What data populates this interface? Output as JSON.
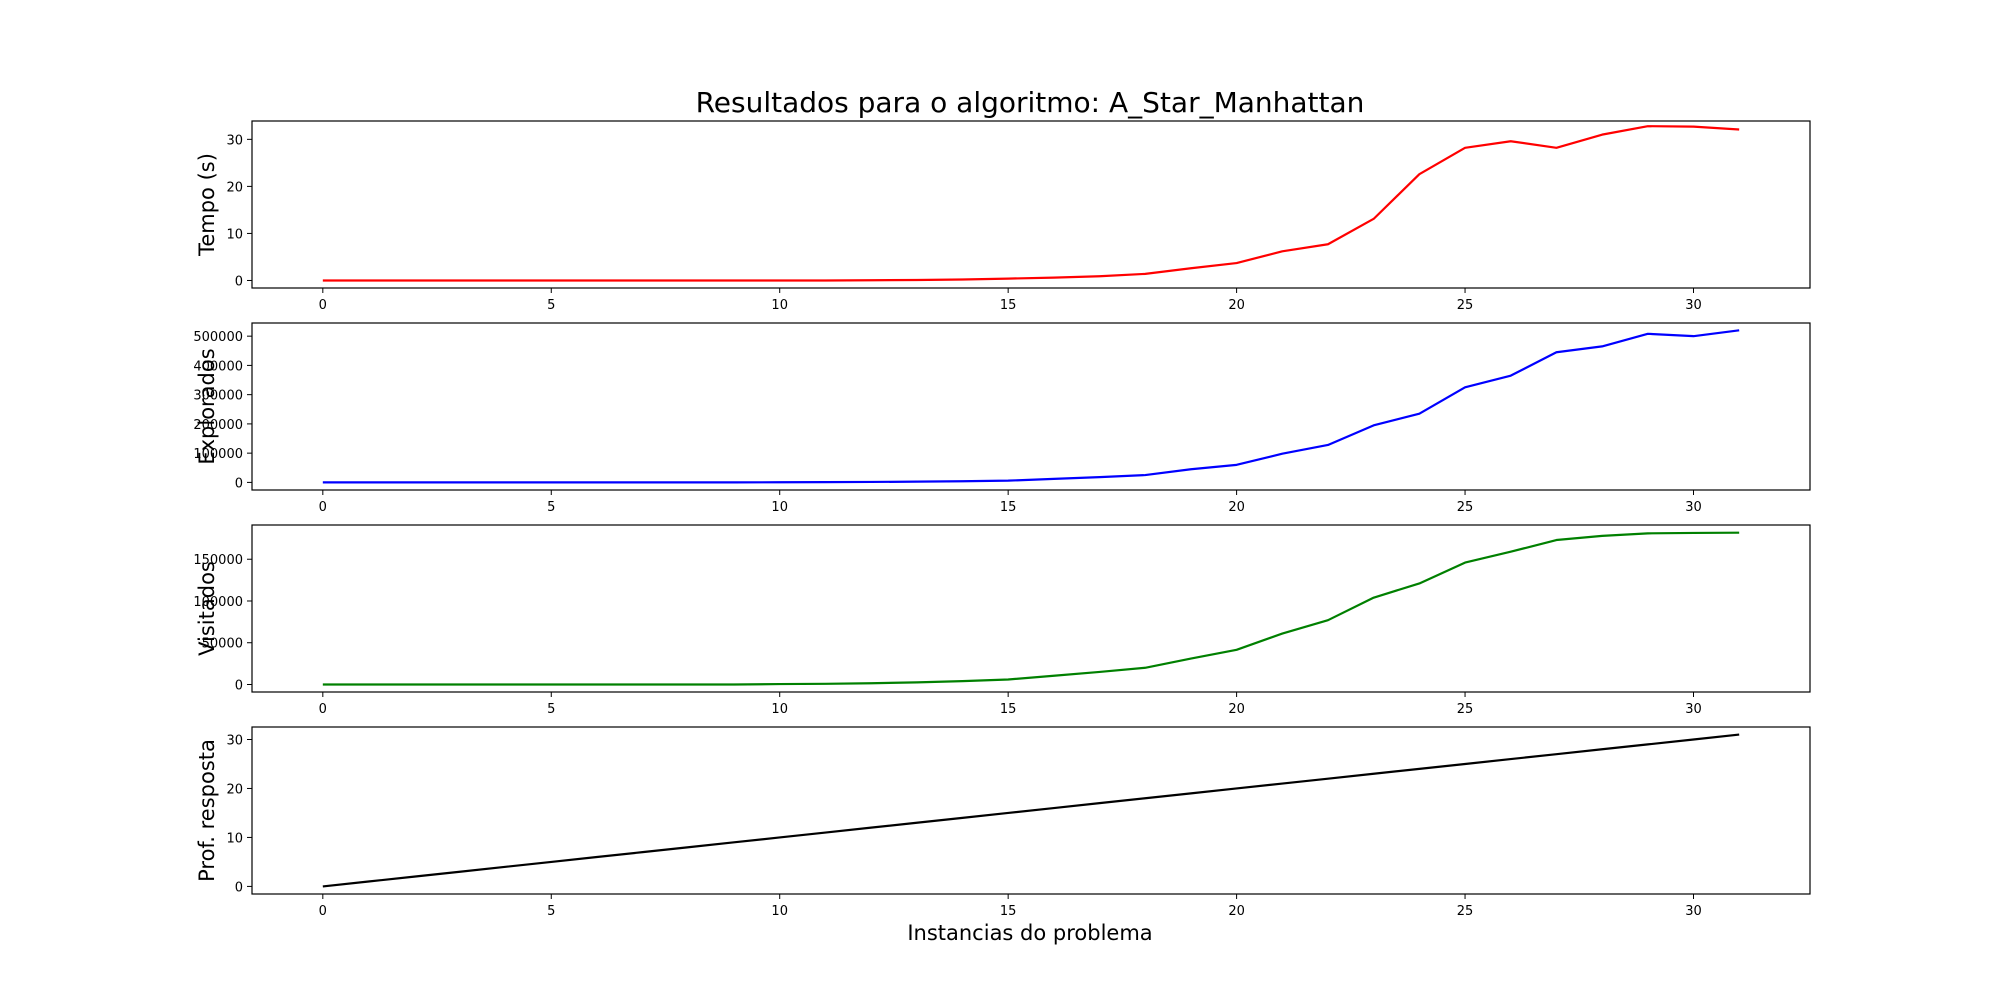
{
  "figure": {
    "title": "Resultados para o algoritmo: A_Star_Manhattan",
    "xlabel": "Instancias do problema"
  },
  "chart_data": [
    {
      "type": "line",
      "ylabel": "Tempo (s)",
      "color": "#ff0000",
      "xlim": [
        -1.55,
        32.55
      ],
      "ylim": [
        -1.6,
        33.9
      ],
      "xticks": [
        0,
        5,
        10,
        15,
        20,
        25,
        30
      ],
      "yticks": [
        0,
        10,
        20,
        30
      ],
      "ytick_labels": [
        "0",
        "10",
        "20",
        "30"
      ],
      "x": [
        0,
        1,
        2,
        3,
        4,
        5,
        6,
        7,
        8,
        9,
        10,
        11,
        12,
        13,
        14,
        15,
        16,
        17,
        18,
        19,
        20,
        21,
        22,
        23,
        24,
        25,
        26,
        27,
        28,
        29,
        30,
        31
      ],
      "values": [
        0,
        0,
        0,
        0,
        0,
        0,
        0,
        0,
        0,
        0,
        0,
        0,
        0.05,
        0.1,
        0.2,
        0.4,
        0.6,
        0.9,
        1.4,
        2.6,
        3.7,
        6.2,
        7.7,
        13.1,
        22.6,
        28.2,
        29.6,
        28.2,
        31.0,
        32.8,
        32.7,
        32.1
      ]
    },
    {
      "type": "line",
      "ylabel": "Explorados",
      "color": "#0000ff",
      "xlim": [
        -1.55,
        32.55
      ],
      "ylim": [
        -26000,
        545000
      ],
      "xticks": [
        0,
        5,
        10,
        15,
        20,
        25,
        30
      ],
      "yticks": [
        0,
        100000,
        200000,
        300000,
        400000,
        500000
      ],
      "ytick_labels": [
        "0",
        "100000",
        "200000",
        "300000",
        "400000",
        "500000"
      ],
      "x": [
        0,
        1,
        2,
        3,
        4,
        5,
        6,
        7,
        8,
        9,
        10,
        11,
        12,
        13,
        14,
        15,
        16,
        17,
        18,
        19,
        20,
        21,
        22,
        23,
        24,
        25,
        26,
        27,
        28,
        29,
        30,
        31
      ],
      "values": [
        0,
        0,
        0,
        0,
        0,
        0,
        0,
        0,
        0,
        0,
        500,
        800,
        1500,
        2500,
        4000,
        6000,
        12000,
        18000,
        25000,
        45000,
        60000,
        98000,
        128000,
        195000,
        235000,
        325000,
        365000,
        445000,
        465000,
        508000,
        500000,
        520000
      ]
    },
    {
      "type": "line",
      "ylabel": "Visitados",
      "color": "#008000",
      "xlim": [
        -1.55,
        32.55
      ],
      "ylim": [
        -9000,
        191000
      ],
      "xticks": [
        0,
        5,
        10,
        15,
        20,
        25,
        30
      ],
      "yticks": [
        0,
        50000,
        100000,
        150000
      ],
      "ytick_labels": [
        "0",
        "50000",
        "100000",
        "150000"
      ],
      "x": [
        0,
        1,
        2,
        3,
        4,
        5,
        6,
        7,
        8,
        9,
        10,
        11,
        12,
        13,
        14,
        15,
        16,
        17,
        18,
        19,
        20,
        21,
        22,
        23,
        24,
        25,
        26,
        27,
        28,
        29,
        30,
        31
      ],
      "values": [
        0,
        0,
        0,
        0,
        0,
        0,
        0,
        0,
        0,
        0,
        500,
        800,
        1500,
        2500,
        4000,
        6000,
        10500,
        15000,
        20000,
        31000,
        41500,
        61000,
        77000,
        104000,
        121000,
        146000,
        159000,
        173000,
        178000,
        181000,
        181500,
        181800
      ]
    },
    {
      "type": "line",
      "ylabel": "Prof. resposta",
      "color": "#000000",
      "xlim": [
        -1.55,
        32.55
      ],
      "ylim": [
        -1.55,
        32.55
      ],
      "xticks": [
        0,
        5,
        10,
        15,
        20,
        25,
        30
      ],
      "yticks": [
        0,
        10,
        20,
        30
      ],
      "ytick_labels": [
        "0",
        "10",
        "20",
        "30"
      ],
      "x": [
        0,
        1,
        2,
        3,
        4,
        5,
        6,
        7,
        8,
        9,
        10,
        11,
        12,
        13,
        14,
        15,
        16,
        17,
        18,
        19,
        20,
        21,
        22,
        23,
        24,
        25,
        26,
        27,
        28,
        29,
        30,
        31
      ],
      "values": [
        0,
        1,
        2,
        3,
        4,
        5,
        6,
        7,
        8,
        9,
        10,
        11,
        12,
        13,
        14,
        15,
        16,
        17,
        18,
        19,
        20,
        21,
        22,
        23,
        24,
        25,
        26,
        27,
        28,
        29,
        30,
        31
      ]
    }
  ]
}
